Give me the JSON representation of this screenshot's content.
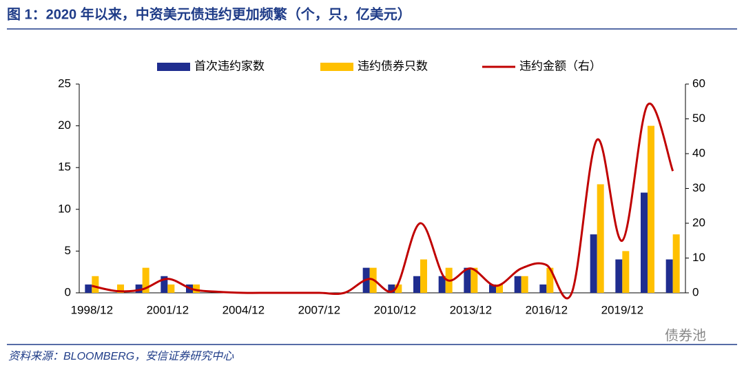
{
  "title": "图 1：2020 年以来，中资美元债违约更加频繁（个，只，亿美元）",
  "source": "资料来源：BLOOMBERG，安信证券研究中心",
  "watermark": "债券池",
  "chart_data": {
    "type": "bar",
    "categories": [
      "1998/12",
      null,
      null,
      "2001/12",
      null,
      null,
      "2004/12",
      null,
      null,
      "2007/12",
      null,
      null,
      "2010/12",
      null,
      null,
      "2013/12",
      null,
      null,
      "2016/12",
      null,
      null,
      "2019/12",
      null,
      null
    ],
    "series": [
      {
        "name": "首次违约家数",
        "color": "#1f2d8f",
        "values": [
          1,
          0,
          1,
          2,
          1,
          0,
          0,
          0,
          0,
          0,
          0,
          3,
          1,
          2,
          2,
          3,
          1,
          2,
          1,
          0,
          7,
          4,
          12,
          4
        ]
      },
      {
        "name": "违约债券只数",
        "color": "#ffc000",
        "values": [
          2,
          1,
          3,
          1,
          1,
          0,
          0,
          0,
          0,
          0,
          0,
          3,
          1,
          4,
          3,
          3,
          1,
          2,
          3,
          0,
          13,
          5,
          20,
          7
        ]
      },
      {
        "name": "违约金额（右）",
        "color": "#c00000",
        "type": "line",
        "axis": "y2",
        "values": [
          2,
          0.5,
          1,
          4,
          1,
          0.3,
          0,
          0,
          0,
          0,
          0,
          4,
          1,
          20,
          4,
          7,
          2,
          7,
          8,
          0,
          44,
          15,
          54,
          35
        ]
      }
    ],
    "ylim": [
      0,
      25
    ],
    "yticks": [
      0,
      5,
      10,
      15,
      20,
      25
    ],
    "y2lim": [
      0,
      60
    ],
    "y2ticks": [
      0,
      10,
      20,
      30,
      40,
      50,
      60
    ],
    "legend": "top"
  }
}
